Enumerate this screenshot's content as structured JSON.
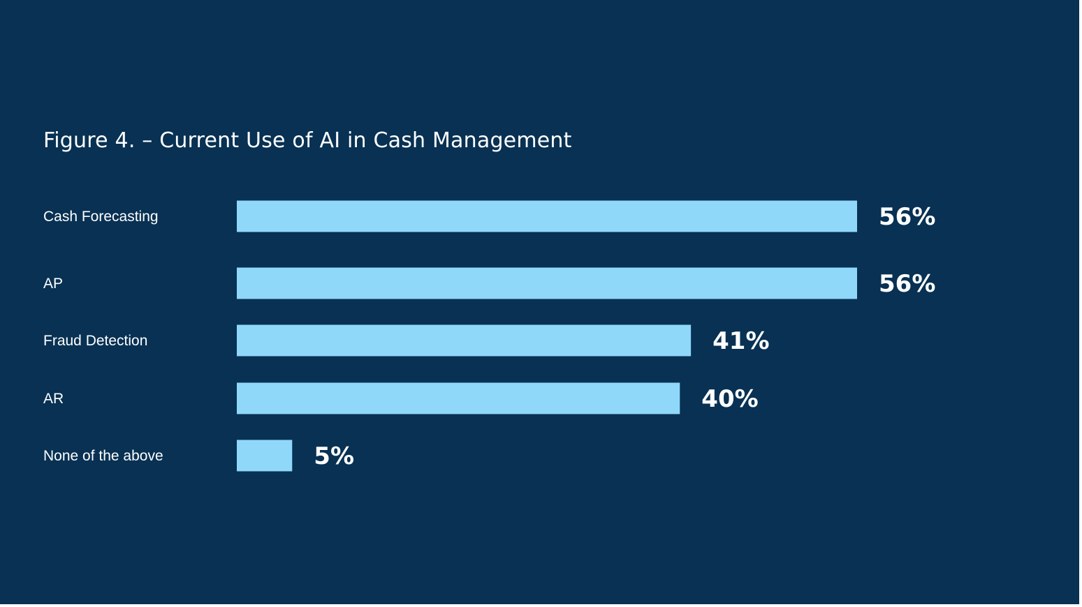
{
  "colors": {
    "background": "#083153",
    "bar": "#8fd8fa",
    "text": "#ffffff"
  },
  "chart_data": {
    "type": "bar",
    "orientation": "horizontal",
    "title": "Figure 4. – Current Use of AI in Cash Management",
    "categories": [
      "Cash Forecasting",
      "AP",
      "Fraud Detection",
      "AR",
      "None of the above"
    ],
    "values": [
      56,
      56,
      41,
      40,
      5
    ],
    "value_labels": [
      "56%",
      "56%",
      "41%",
      "40%",
      "5%"
    ],
    "unit": "%",
    "xlabel": "",
    "ylabel": "",
    "grid": false,
    "legend": "none"
  }
}
